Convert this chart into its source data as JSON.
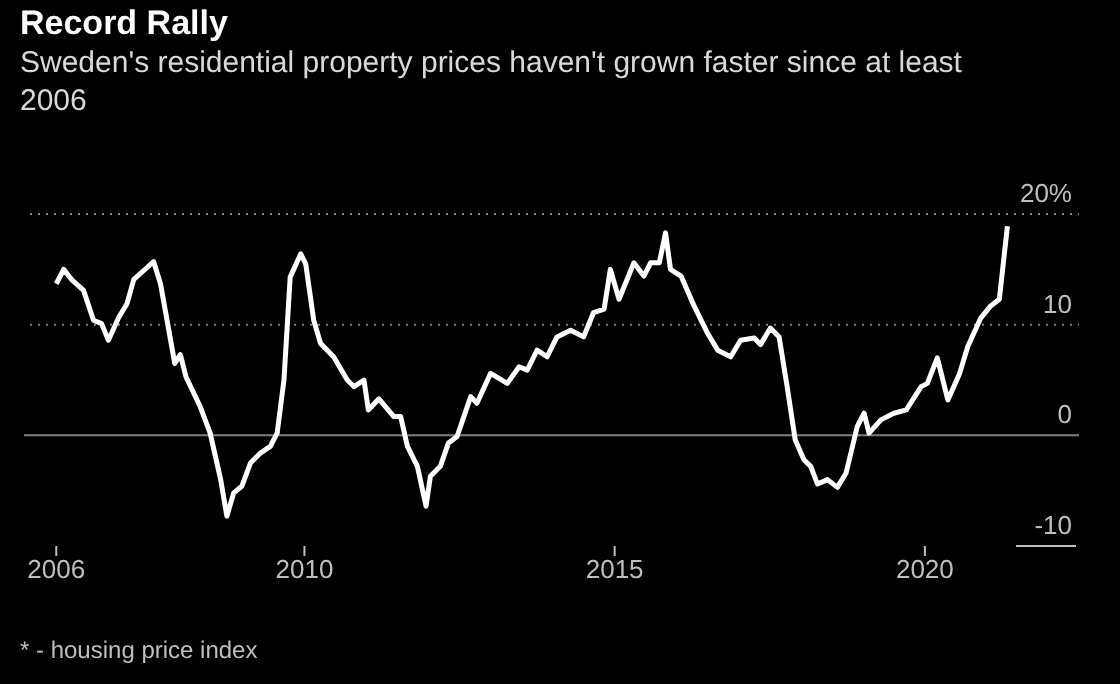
{
  "chart_data": {
    "type": "line",
    "title": "Record Rally",
    "subtitle": "Sweden's residential property prices haven't grown faster since at least 2006",
    "annotations": [
      "* - housing price index"
    ],
    "x": [
      2006.0,
      2006.12,
      2006.26,
      2006.44,
      2006.6,
      2006.73,
      2006.84,
      2007.01,
      2007.14,
      2007.25,
      2007.41,
      2007.57,
      2007.68,
      2007.91,
      2008.0,
      2008.09,
      2008.32,
      2008.48,
      2008.65,
      2008.75,
      2008.86,
      2008.99,
      2009.13,
      2009.29,
      2009.45,
      2009.56,
      2009.67,
      2009.77,
      2009.94,
      2010.02,
      2010.15,
      2010.26,
      2010.47,
      2010.69,
      2010.8,
      2010.96,
      2011.03,
      2011.2,
      2011.44,
      2011.55,
      2011.66,
      2011.82,
      2011.96,
      2012.03,
      2012.19,
      2012.32,
      2012.46,
      2012.68,
      2012.78,
      2013.0,
      2013.27,
      2013.46,
      2013.59,
      2013.75,
      2013.91,
      2014.07,
      2014.29,
      2014.5,
      2014.66,
      2014.83,
      2014.93,
      2015.07,
      2015.31,
      2015.47,
      2015.58,
      2015.72,
      2015.82,
      2015.9,
      2016.07,
      2016.28,
      2016.5,
      2016.66,
      2016.87,
      2017.03,
      2017.25,
      2017.35,
      2017.51,
      2017.65,
      2017.78,
      2017.91,
      2018.05,
      2018.16,
      2018.27,
      2018.43,
      2018.59,
      2018.73,
      2018.91,
      2019.02,
      2019.1,
      2019.29,
      2019.5,
      2019.7,
      2019.94,
      2020.04,
      2020.2,
      2020.37,
      2020.56,
      2020.69,
      2020.9,
      2021.06,
      2021.2,
      2021.33
    ],
    "series": [
      {
        "color": "#ffffff",
        "values": [
          13.7,
          15.0,
          14.0,
          13.1,
          10.4,
          10.1,
          8.6,
          10.7,
          11.9,
          14.1,
          14.9,
          15.7,
          13.7,
          6.5,
          7.3,
          5.3,
          2.6,
          0.2,
          -4.0,
          -7.3,
          -5.2,
          -4.6,
          -2.5,
          -1.6,
          -1.0,
          0.2,
          5.0,
          14.3,
          16.4,
          15.5,
          10.4,
          8.3,
          7.1,
          5.0,
          4.4,
          5.0,
          2.3,
          3.3,
          1.7,
          1.7,
          -1.0,
          -2.8,
          -6.4,
          -3.7,
          -2.8,
          -0.7,
          -0.1,
          3.5,
          2.9,
          5.6,
          4.7,
          6.2,
          5.9,
          7.7,
          7.1,
          8.9,
          9.5,
          8.9,
          11.1,
          11.4,
          15.0,
          12.3,
          15.6,
          14.4,
          15.6,
          15.6,
          18.3,
          15.0,
          14.4,
          11.7,
          9.2,
          7.7,
          7.1,
          8.6,
          8.8,
          8.2,
          9.7,
          8.9,
          4.4,
          -0.4,
          -2.2,
          -2.8,
          -4.4,
          -4.0,
          -4.7,
          -3.4,
          0.8,
          2.0,
          0.2,
          1.4,
          2.0,
          2.3,
          4.4,
          4.7,
          7.0,
          3.2,
          5.6,
          8.0,
          10.6,
          11.7,
          12.3,
          18.9
        ]
      }
    ],
    "xlim": [
      2005.48,
      2022.5
    ],
    "xticks": [
      2006,
      2010,
      2015,
      2020
    ],
    "ylim": [
      -10,
      21
    ],
    "yticks": [
      {
        "value": -10,
        "label": "-10"
      },
      0,
      10,
      {
        "value": 20,
        "label": "20%"
      }
    ],
    "grid": "y",
    "ref_lines": [
      {
        "axis": "y",
        "value": 0,
        "color": "#7f7f7f"
      }
    ],
    "marker": "none",
    "line_style": "solid"
  }
}
